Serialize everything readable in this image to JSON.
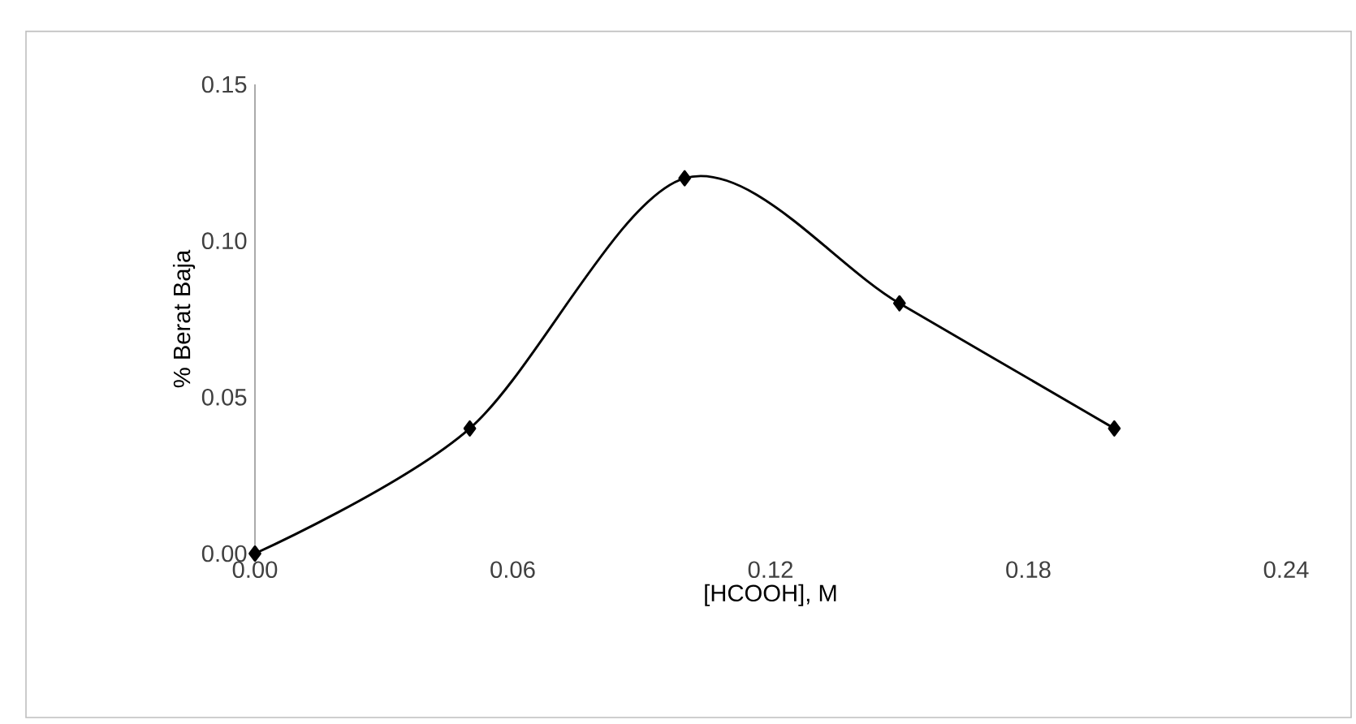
{
  "chart_data": {
    "type": "line",
    "xlabel": "[HCOOH], M",
    "ylabel": "% Berat Baja",
    "x": [
      0,
      0.05,
      0.1,
      0.15,
      0.2
    ],
    "series": [
      {
        "color": "#000000",
        "values": [
          0,
          0.04,
          0.12,
          0.08,
          0.04
        ]
      }
    ],
    "xlim": [
      0,
      0.24
    ],
    "ylim": [
      0,
      0.15
    ],
    "xticks": [
      {
        "value": 0,
        "label": "0.00"
      },
      0.06,
      0.12,
      0.18,
      0.24
    ],
    "yticks": [
      {
        "value": 0,
        "label": "0.00"
      },
      0.05,
      {
        "value": 0.1,
        "label": "0.10"
      },
      0.15
    ],
    "grid": false,
    "legend": false,
    "marker": "diamond",
    "line_style": "solid"
  }
}
